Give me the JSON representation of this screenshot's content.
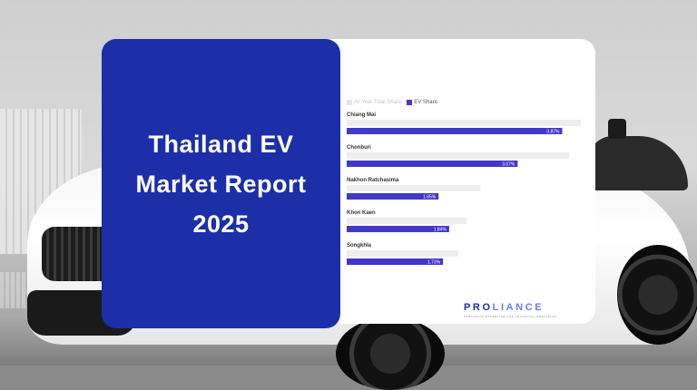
{
  "title": "Thailand EV Market Report 2025",
  "brand": {
    "logo_main": "PRO",
    "logo_accent": "LIANCE",
    "tagline": "STRATEGIC EXPERTISE AND TECHNICAL PRECISION",
    "primary_color": "#1c2fa8"
  },
  "chart_data": {
    "type": "bar",
    "orientation": "horizontal",
    "legend_position": "top-left",
    "grid": false,
    "series": [
      {
        "name": "All Year Total Share",
        "color": "#eeeef0",
        "values": [
          4.2,
          4.0,
          2.4,
          2.15,
          2.0
        ]
      },
      {
        "name": "EV Share",
        "color": "#4338ca",
        "values": [
          3.87,
          3.07,
          1.65,
          1.84,
          1.73
        ],
        "labels": [
          "3.87%",
          "3.07%",
          "1.65%",
          "1.84%",
          "1.73%"
        ]
      }
    ],
    "categories": [
      "Chiang Mai",
      "Chonburi",
      "Nakhon Ratchasima",
      "Khon Kaen",
      "Songkhla"
    ],
    "xlim": [
      0,
      4.4
    ]
  }
}
